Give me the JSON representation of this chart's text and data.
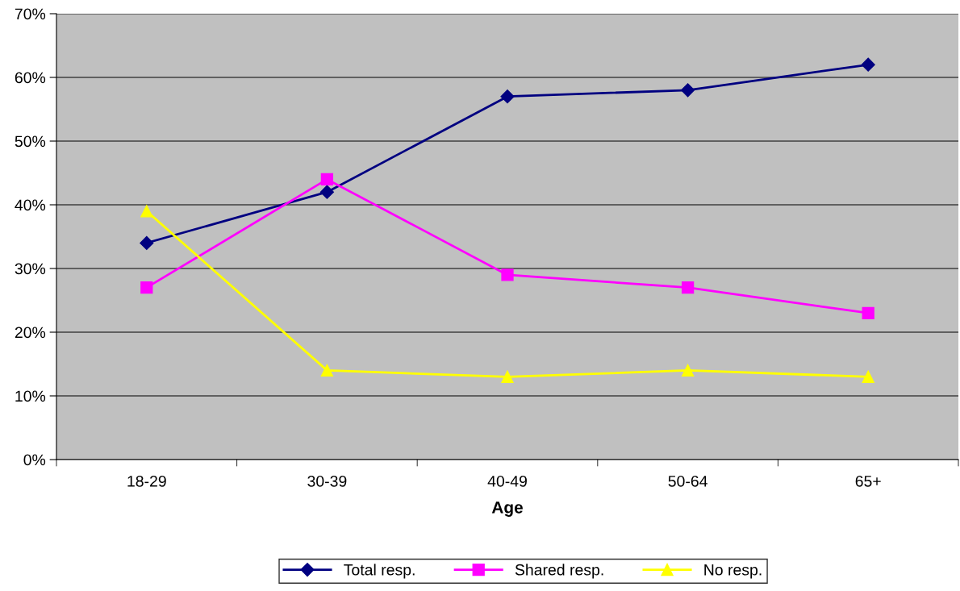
{
  "chart_data": {
    "type": "line",
    "xlabel": "Age",
    "categories": [
      "18-29",
      "30-39",
      "40-49",
      "50-64",
      "65+"
    ],
    "series": [
      {
        "name": "Total resp.",
        "color": "#000080",
        "marker": "diamond",
        "values": [
          34,
          42,
          57,
          58,
          62
        ]
      },
      {
        "name": "Shared resp.",
        "color": "#ff00ff",
        "marker": "square",
        "values": [
          27,
          44,
          29,
          27,
          23
        ]
      },
      {
        "name": "No resp.",
        "color": "#ffff00",
        "marker": "triangle",
        "values": [
          39,
          14,
          13,
          14,
          13
        ]
      }
    ],
    "ylim": [
      0,
      70
    ],
    "yticks": [
      {
        "value": 0,
        "label": "0%"
      },
      {
        "value": 10,
        "label": "10%"
      },
      {
        "value": 20,
        "label": "20%"
      },
      {
        "value": 30,
        "label": "30%"
      },
      {
        "value": 40,
        "label": "40%"
      },
      {
        "value": 50,
        "label": "50%"
      },
      {
        "value": 60,
        "label": "60%"
      },
      {
        "value": 70,
        "label": "70%"
      }
    ],
    "grid": "y",
    "legend": "bottom",
    "line_style": "solid"
  }
}
